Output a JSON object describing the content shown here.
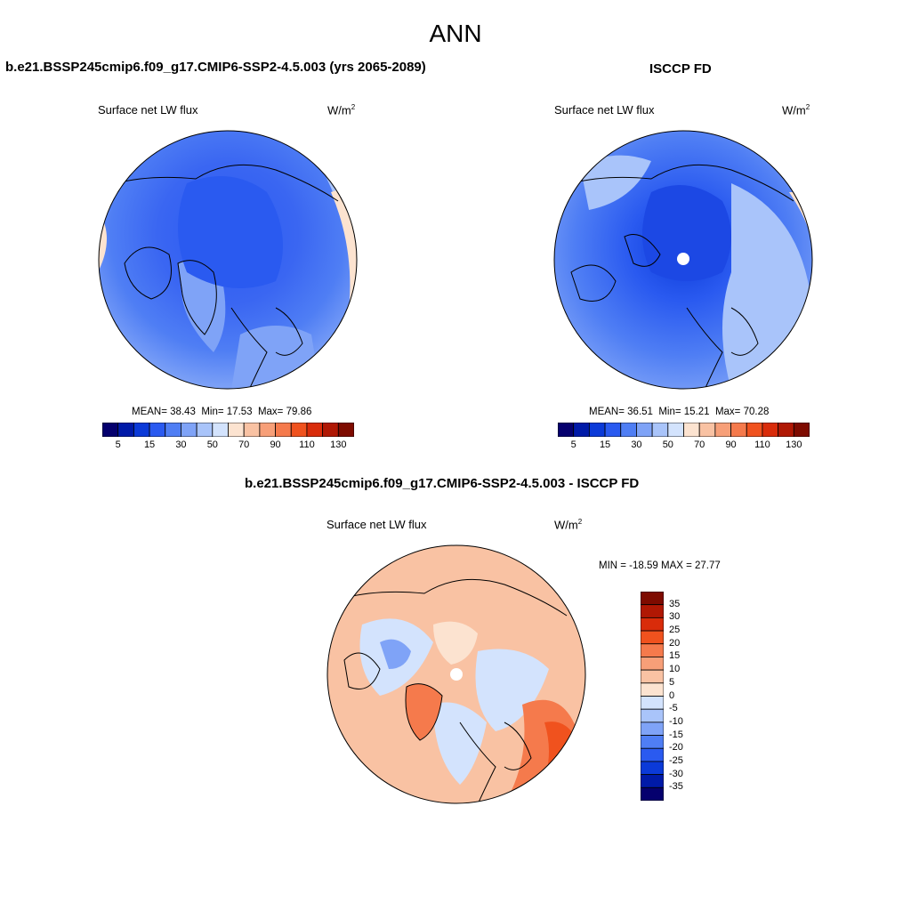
{
  "page": {
    "title": "ANN"
  },
  "panels": [
    {
      "case": "b.e21.BSSP245cmip6.f09_g17.CMIP6-SSP2-4.5.003 (yrs 2065-2089)",
      "variable": "Surface net LW flux",
      "units_base": "W/m",
      "units_exp": "2",
      "mean_label": "MEAN=",
      "mean": "38.43",
      "min_label": "Min=",
      "min": "17.53",
      "max_label": "Max=",
      "max": "79.86"
    },
    {
      "case": "ISCCP FD",
      "variable": "Surface net LW flux",
      "units_base": "W/m",
      "units_exp": "2",
      "mean_label": "MEAN=",
      "mean": "36.51",
      "min_label": "Min=",
      "min": "15.21",
      "max_label": "Max=",
      "max": "70.28"
    }
  ],
  "diff": {
    "case": "b.e21.BSSP245cmip6.f09_g17.CMIP6-SSP2-4.5.003 - ISCCP FD",
    "variable": "Surface net LW flux",
    "units_base": "W/m",
    "units_exp": "2",
    "minmax": "MIN = -18.59 MAX =  27.77"
  },
  "colorbar_abs": {
    "colors": [
      "#05006e",
      "#001aa8",
      "#0b3ad8",
      "#2a5af0",
      "#4f7ef4",
      "#7fa3f7",
      "#a9c4fa",
      "#d3e3fd",
      "#fce3d0",
      "#f9c2a3",
      "#f79f78",
      "#f57a4c",
      "#f0521e",
      "#d92c0a",
      "#b01804",
      "#7e0b00"
    ],
    "tick_labels": [
      "5",
      "15",
      "30",
      "50",
      "70",
      "90",
      "110",
      "130"
    ]
  },
  "colorbar_diff": {
    "colors": [
      "#7e0b00",
      "#b01804",
      "#d92c0a",
      "#f0521e",
      "#f57a4c",
      "#f79f78",
      "#f9c2a3",
      "#fce3d0",
      "#d3e3fd",
      "#a9c4fa",
      "#7fa3f7",
      "#4f7ef4",
      "#2a5af0",
      "#0b3ad8",
      "#001aa8",
      "#05006e"
    ],
    "tick_labels": [
      "35",
      "30",
      "25",
      "20",
      "15",
      "10",
      "5",
      "0",
      "-5",
      "-10",
      "-15",
      "-20",
      "-25",
      "-30",
      "-35"
    ]
  },
  "chart_data": [
    {
      "type": "heatmap",
      "title": "b.e21.BSSP245cmip6.f09_g17.CMIP6-SSP2-4.5.003 (yrs 2065-2089)",
      "variable": "Surface net LW flux",
      "units": "W/m2",
      "projection": "north polar stereographic",
      "mean": 38.43,
      "min": 17.53,
      "max": 79.86,
      "contour_levels": [
        5,
        10,
        15,
        20,
        25,
        30,
        40,
        50,
        60,
        70,
        80,
        90,
        100,
        110,
        120,
        130
      ]
    },
    {
      "type": "heatmap",
      "title": "ISCCP FD",
      "variable": "Surface net LW flux",
      "units": "W/m2",
      "projection": "north polar stereographic",
      "mean": 36.51,
      "min": 15.21,
      "max": 70.28,
      "contour_levels": [
        5,
        10,
        15,
        20,
        25,
        30,
        40,
        50,
        60,
        70,
        80,
        90,
        100,
        110,
        120,
        130
      ]
    },
    {
      "type": "heatmap",
      "title": "b.e21.BSSP245cmip6.f09_g17.CMIP6-SSP2-4.5.003 - ISCCP FD",
      "variable": "Surface net LW flux",
      "units": "W/m2",
      "projection": "north polar stereographic",
      "min": -18.59,
      "max": 27.77,
      "contour_levels": [
        -35,
        -30,
        -25,
        -20,
        -15,
        -10,
        -5,
        0,
        5,
        10,
        15,
        20,
        25,
        30,
        35
      ]
    }
  ]
}
